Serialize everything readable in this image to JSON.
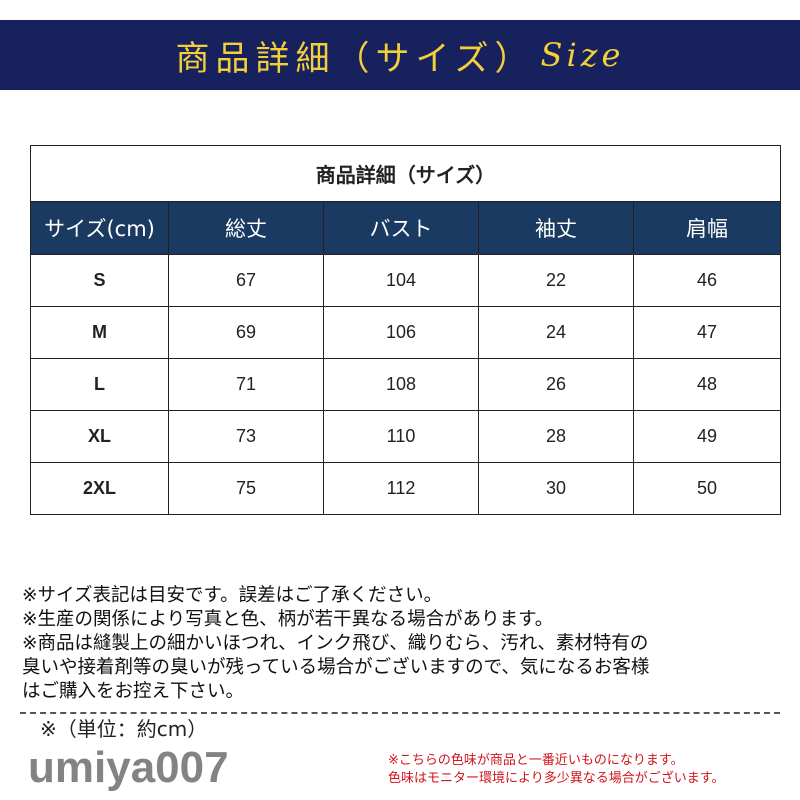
{
  "banner": {
    "title": "商品詳細（サイズ）",
    "title_suffix": "Size",
    "bg_color": "#16215e",
    "text_color": "#f3cf3a"
  },
  "table": {
    "title": "商品詳細（サイズ）",
    "headers": [
      "サイズ(cm)",
      "総丈",
      "バスト",
      "袖丈",
      "肩幅"
    ],
    "header_color": "#1b3a62",
    "rows": [
      [
        "S",
        "67",
        "104",
        "22",
        "46"
      ],
      [
        "M",
        "69",
        "106",
        "24",
        "47"
      ],
      [
        "L",
        "71",
        "108",
        "26",
        "48"
      ],
      [
        "XL",
        "73",
        "110",
        "28",
        "49"
      ],
      [
        "2XL",
        "75",
        "112",
        "30",
        "50"
      ]
    ]
  },
  "notes": [
    "※サイズ表記は目安です。誤差はご了承ください。",
    "※生産の関係により写真と色、柄が若干異なる場合があります。",
    "※商品は縫製上の細かいほつれ、インク飛び、織りむら、汚れ、素材特有の",
    "臭いや接着剤等の臭いが残っている場合がございますので、気になるお客様",
    "はご購入をお控え下さい。"
  ],
  "unit_note": "※（単位：約cm）",
  "watermark": "umiya007",
  "red_note": [
    "※こちらの色味が商品と一番近いものになります。",
    "色味はモニター環境により多少異なる場合がございます。"
  ]
}
